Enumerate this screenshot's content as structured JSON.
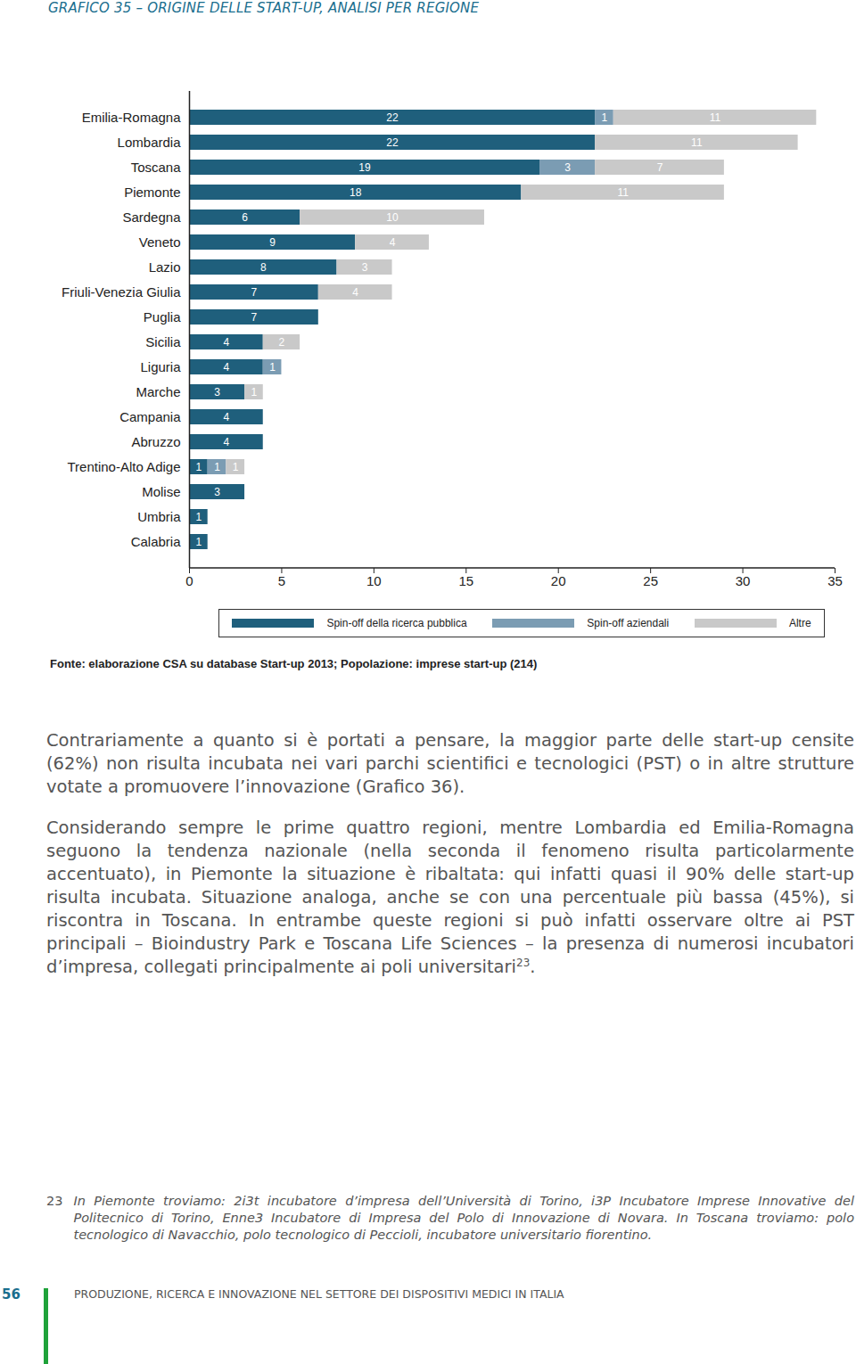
{
  "chart_data": {
    "type": "bar",
    "title": "GRAFICO 35 – ORIGINE DELLE START-UP, ANALISI PER REGIONE",
    "orientation": "horizontal",
    "stacked": true,
    "data_labels": true,
    "grid": false,
    "legend": "bottom",
    "categories": [
      "Emilia-Romagna",
      "Lombardia",
      "Toscana",
      "Piemonte",
      "Sardegna",
      "Veneto",
      "Lazio",
      "Friuli-Venezia Giulia",
      "Puglia",
      "Sicilia",
      "Liguria",
      "Marche",
      "Campania",
      "Abruzzo",
      "Trentino-Alto Adige",
      "Molise",
      "Umbria",
      "Calabria"
    ],
    "series": [
      {
        "name": "Spin-off della ricerca pubblica",
        "color": "#1f5f7c",
        "values": [
          22,
          22,
          19,
          18,
          6,
          9,
          8,
          7,
          7,
          4,
          4,
          3,
          4,
          4,
          1,
          3,
          1,
          1
        ]
      },
      {
        "name": "Spin-off aziendali",
        "color": "#7b9cb3",
        "values": [
          1,
          null,
          3,
          null,
          null,
          null,
          null,
          null,
          null,
          null,
          1,
          null,
          null,
          null,
          1,
          null,
          null,
          null
        ]
      },
      {
        "name": "Altre",
        "color": "#c9c9c9",
        "values": [
          11,
          11,
          7,
          11,
          10,
          4,
          3,
          4,
          null,
          2,
          null,
          1,
          null,
          null,
          1,
          null,
          null,
          null
        ]
      }
    ],
    "xlim": [
      0,
      35
    ],
    "xticks": [
      0,
      5,
      10,
      15,
      20,
      25,
      30,
      35
    ]
  },
  "source": "Fonte: elaborazione CSA su database Start-up 2013; Popolazione: imprese start-up (214)",
  "paragraphs": [
    {
      "text": "Contrariamente a quanto si è portati a pensare, la maggior parte delle start-up censite (62%) non risulta incubata nei vari parchi scientifici e tecnologici (PST) o in altre strutture votate a promuovere l’innovazione (Grafico 36)."
    },
    {
      "text": "Considerando sempre le prime quattro regioni, mentre Lombardia ed Emilia-Romagna seguono la tendenza nazionale (nella seconda il fenomeno risulta particolarmente accentuato), in Piemonte la situazione è ribaltata: qui infatti quasi il 90% delle start-up risulta incubata. Situazione analoga, anche se con una percentuale più bassa (45%), si riscontra in Toscana. In entrambe queste regioni si può infatti osservare oltre ai PST principali – Bioindustry Park e Toscana Life Sciences – la presenza di numerosi incubatori d’impresa, collegati principalmente ai poli universitari",
      "footnote_ref": "23",
      "text_after_ref": "."
    }
  ],
  "footnote": {
    "number": "23",
    "text": "In Piemonte troviamo: 2i3t incubatore d’impresa dell’Università di Torino, i3P Incubatore Imprese Innovative del Politecnico di Torino, Enne3 Incubatore di Impresa del Polo di Innovazione di Novara. In Toscana troviamo: polo tecnologico di Navacchio, polo tecnologico di Peccioli, incubatore universitario fiorentino."
  },
  "footer": {
    "page": "56",
    "text": "PRODUZIONE, RICERCA E INNOVAZIONE NEL SETTORE DEI DISPOSITIVI MEDICI IN ITALIA"
  }
}
